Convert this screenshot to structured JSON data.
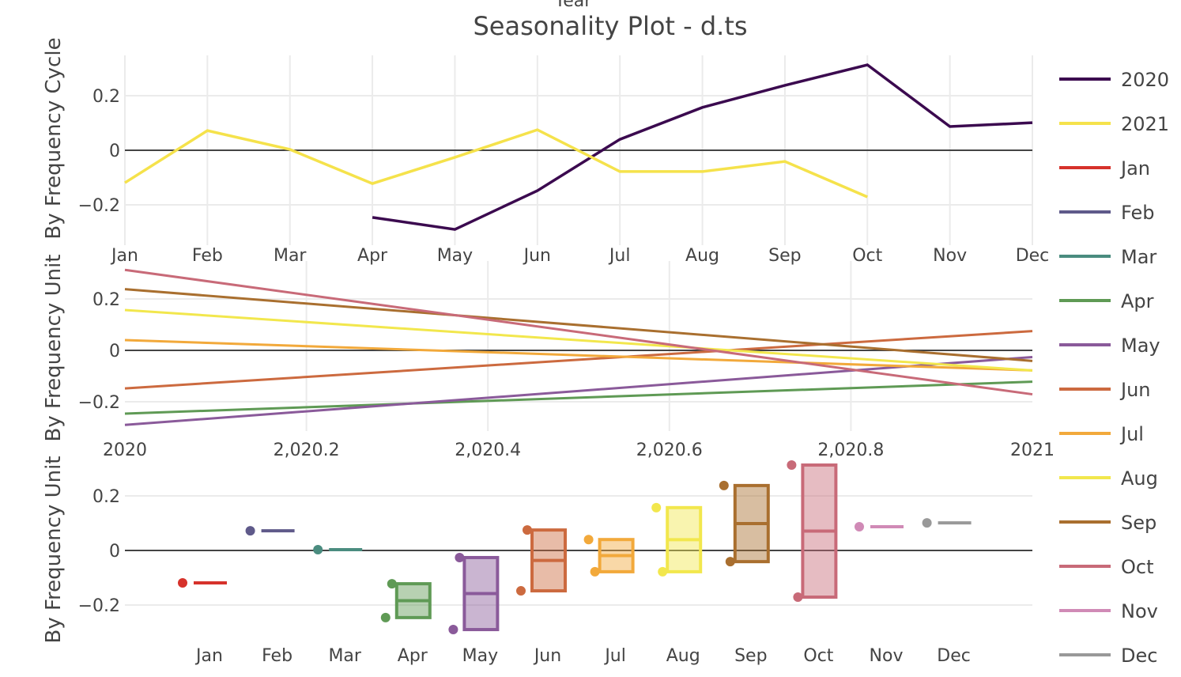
{
  "chart_data": [
    {
      "type": "line",
      "title": "Seasonality Plot - d.ts",
      "top_label": "Year",
      "ylabel": "By Frequency Cycle",
      "categories": [
        "Jan",
        "Feb",
        "Mar",
        "Apr",
        "May",
        "Jun",
        "Jul",
        "Aug",
        "Sep",
        "Oct",
        "Nov",
        "Dec"
      ],
      "yticks": [
        "0.2",
        "0",
        "−0.2"
      ],
      "ylim": [
        -0.32,
        0.35
      ],
      "series": [
        {
          "name": "2020",
          "color": "#3b0a4f",
          "values": [
            null,
            null,
            null,
            -0.246,
            -0.29,
            -0.148,
            0.04,
            0.157,
            0.238,
            0.313,
            0.087,
            0.101
          ]
        },
        {
          "name": "2021",
          "color": "#f5e24b",
          "values": [
            -0.119,
            0.072,
            0.003,
            -0.122,
            -0.026,
            0.075,
            -0.078,
            -0.078,
            -0.041,
            -0.171,
            null,
            null
          ]
        }
      ]
    },
    {
      "type": "line",
      "ylabel": "By Frequency Unit",
      "xlim": [
        2020,
        2021
      ],
      "xticks": [
        "2020",
        "2,020.2",
        "2,020.4",
        "2,020.6",
        "2,020.8",
        "2021"
      ],
      "yticks": [
        "0.2",
        "0",
        "−0.2"
      ],
      "series": [
        {
          "name": "Apr",
          "x": [
            2020,
            2021
          ],
          "values": [
            -0.246,
            -0.122
          ]
        },
        {
          "name": "May",
          "x": [
            2020,
            2021
          ],
          "values": [
            -0.29,
            -0.026
          ]
        },
        {
          "name": "Jun",
          "x": [
            2020,
            2021
          ],
          "values": [
            -0.148,
            0.075
          ]
        },
        {
          "name": "Jul",
          "x": [
            2020,
            2021
          ],
          "values": [
            0.04,
            -0.078
          ]
        },
        {
          "name": "Aug",
          "x": [
            2020,
            2021
          ],
          "values": [
            0.157,
            -0.078
          ]
        },
        {
          "name": "Sep",
          "x": [
            2020,
            2021
          ],
          "values": [
            0.238,
            -0.041
          ]
        },
        {
          "name": "Oct",
          "x": [
            2020,
            2021
          ],
          "values": [
            0.313,
            -0.171
          ]
        }
      ]
    },
    {
      "type": "box",
      "ylabel": "By Frequency Unit",
      "yticks": [
        "0.2",
        "0",
        "−0.2"
      ],
      "categories": [
        "Jan",
        "Feb",
        "Mar",
        "Apr",
        "May",
        "Jun",
        "Jul",
        "Aug",
        "Sep",
        "Oct",
        "Nov",
        "Dec"
      ],
      "values": [
        [
          -0.119
        ],
        [
          0.072
        ],
        [
          0.003
        ],
        [
          -0.246,
          -0.122
        ],
        [
          -0.29,
          -0.026
        ],
        [
          -0.148,
          0.075
        ],
        [
          0.04,
          -0.078
        ],
        [
          0.157,
          -0.078
        ],
        [
          0.238,
          -0.041
        ],
        [
          0.313,
          -0.171
        ],
        [
          0.087
        ],
        [
          0.101
        ]
      ]
    }
  ],
  "legend": [
    {
      "label": "2020",
      "color": "#3b0a4f"
    },
    {
      "label": "2021",
      "color": "#f5e24b"
    },
    {
      "label": "Jan",
      "color": "#d6322b"
    },
    {
      "label": "Feb",
      "color": "#5f5a8a"
    },
    {
      "label": "Mar",
      "color": "#4a8c7f"
    },
    {
      "label": "Apr",
      "color": "#5f9a55"
    },
    {
      "label": "May",
      "color": "#8a5a9a"
    },
    {
      "label": "Jun",
      "color": "#cc6a3f"
    },
    {
      "label": "Jul",
      "color": "#f2a93b"
    },
    {
      "label": "Aug",
      "color": "#f2e74d"
    },
    {
      "label": "Sep",
      "color": "#a96f2f"
    },
    {
      "label": "Oct",
      "color": "#c86a78"
    },
    {
      "label": "Nov",
      "color": "#d08ab6"
    },
    {
      "label": "Dec",
      "color": "#999999"
    }
  ]
}
